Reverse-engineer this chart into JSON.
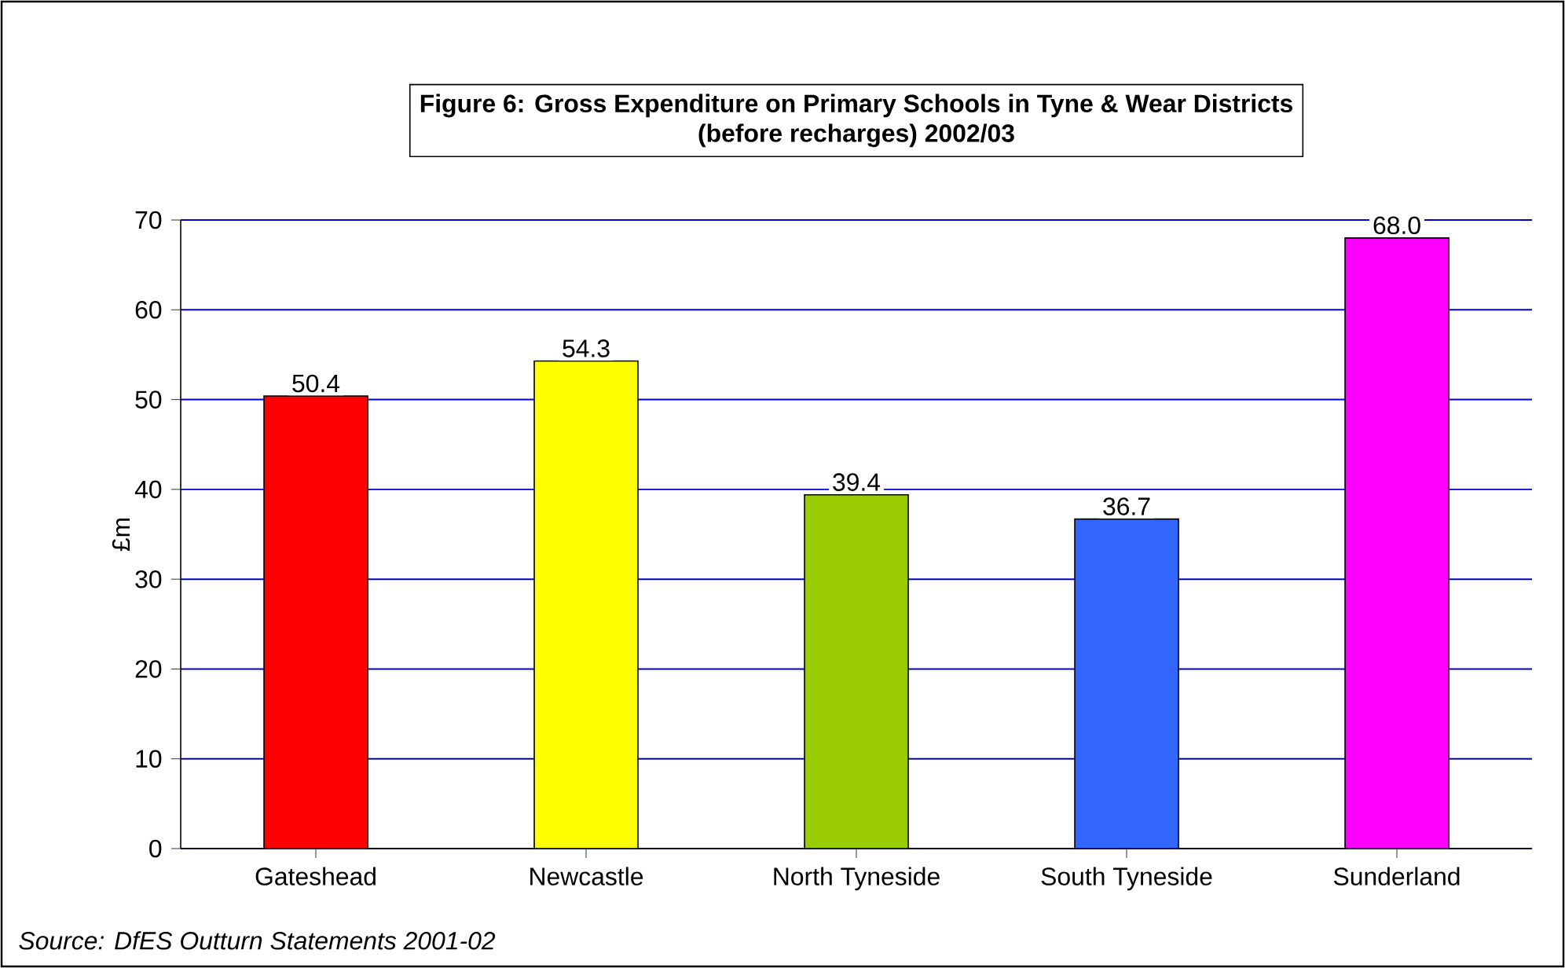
{
  "chart_data": {
    "type": "bar",
    "title": "Figure 6: Gross Expenditure on Primary Schools in Tyne & Wear Districts\n(before recharges) 2002/03",
    "categories": [
      "Gateshead",
      "Newcastle",
      "North Tyneside",
      "South Tyneside",
      "Sunderland"
    ],
    "values": [
      50.4,
      54.3,
      39.4,
      36.7,
      68.0
    ],
    "colors": [
      "#ff0000",
      "#ffff00",
      "#99cc00",
      "#3366ff",
      "#ff00ff"
    ],
    "ylabel": "£m",
    "ylim": [
      0,
      70
    ],
    "yticks": [
      0,
      10,
      20,
      30,
      40,
      50,
      60,
      70
    ],
    "grid": "y",
    "value_labels": [
      "50.4",
      "54.3",
      "39.4",
      "36.7",
      "68.0"
    ],
    "annotations": [
      "Source: DfES Outturn Statements 2001-02"
    ]
  }
}
